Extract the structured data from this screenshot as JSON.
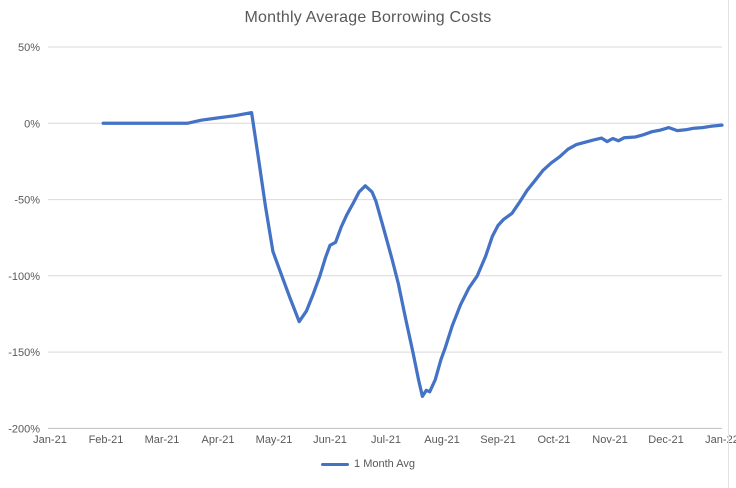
{
  "title": "Monthly Average Borrowing Costs",
  "legend": {
    "series_label": "1 Month Avg"
  },
  "chart_data": {
    "type": "line",
    "title": "Monthly Average Borrowing Costs",
    "xlabel": "",
    "ylabel": "",
    "grid": "horizontal",
    "legend_position": "bottom",
    "xlim": [
      0,
      12
    ],
    "ylim": [
      -200,
      50
    ],
    "x_tick_labels": [
      "Jan-21",
      "Feb-21",
      "Mar-21",
      "Apr-21",
      "May-21",
      "Jun-21",
      "Jul-21",
      "Aug-21",
      "Sep-21",
      "Oct-21",
      "Nov-21",
      "Dec-21",
      "Jan-22"
    ],
    "y_ticks": [
      {
        "value": 50,
        "label": "50%"
      },
      {
        "value": 0,
        "label": "0%"
      },
      {
        "value": -50,
        "label": "-50%"
      },
      {
        "value": -100,
        "label": "-100%"
      },
      {
        "value": -150,
        "label": "-150%"
      },
      {
        "value": -200,
        "label": "-200%"
      }
    ],
    "colors": {
      "line": "#4472C4",
      "gridline": "#D9D9D9",
      "axis_line": "#BFBFBF",
      "text": "#595959"
    },
    "x_units": "months since Jan-2021 tick (0 = Jan-21, 12 = Jan-22)",
    "series": [
      {
        "name": "1 Month Avg",
        "color": "#4472C4",
        "points": [
          [
            0.95,
            0
          ],
          [
            1.3,
            0
          ],
          [
            1.7,
            0
          ],
          [
            2.1,
            0
          ],
          [
            2.45,
            0
          ],
          [
            2.7,
            2
          ],
          [
            3.0,
            3.5
          ],
          [
            3.3,
            5
          ],
          [
            3.6,
            7
          ],
          [
            3.73,
            -25
          ],
          [
            3.85,
            -55
          ],
          [
            3.98,
            -84
          ],
          [
            4.12,
            -98
          ],
          [
            4.28,
            -114
          ],
          [
            4.45,
            -130
          ],
          [
            4.58,
            -123
          ],
          [
            4.7,
            -112
          ],
          [
            4.82,
            -100
          ],
          [
            4.92,
            -88
          ],
          [
            5.0,
            -80
          ],
          [
            5.1,
            -78
          ],
          [
            5.2,
            -68
          ],
          [
            5.3,
            -60
          ],
          [
            5.42,
            -52
          ],
          [
            5.52,
            -45
          ],
          [
            5.63,
            -41
          ],
          [
            5.75,
            -45
          ],
          [
            5.82,
            -51
          ],
          [
            5.95,
            -68
          ],
          [
            6.1,
            -88
          ],
          [
            6.22,
            -105
          ],
          [
            6.35,
            -128
          ],
          [
            6.48,
            -150
          ],
          [
            6.58,
            -168
          ],
          [
            6.65,
            -179
          ],
          [
            6.72,
            -175
          ],
          [
            6.78,
            -176
          ],
          [
            6.88,
            -168
          ],
          [
            6.98,
            -155
          ],
          [
            7.05,
            -148
          ],
          [
            7.18,
            -133
          ],
          [
            7.33,
            -119
          ],
          [
            7.48,
            -108
          ],
          [
            7.63,
            -100
          ],
          [
            7.78,
            -87
          ],
          [
            7.9,
            -74
          ],
          [
            8.0,
            -67
          ],
          [
            8.1,
            -63
          ],
          [
            8.25,
            -59
          ],
          [
            8.38,
            -52
          ],
          [
            8.52,
            -44
          ],
          [
            8.65,
            -38
          ],
          [
            8.8,
            -31
          ],
          [
            8.95,
            -26
          ],
          [
            9.1,
            -22
          ],
          [
            9.25,
            -17
          ],
          [
            9.4,
            -14
          ],
          [
            9.55,
            -12.5
          ],
          [
            9.7,
            -11
          ],
          [
            9.85,
            -9.7
          ],
          [
            9.95,
            -12
          ],
          [
            10.05,
            -10
          ],
          [
            10.15,
            -11.5
          ],
          [
            10.25,
            -9.5
          ],
          [
            10.45,
            -9
          ],
          [
            10.6,
            -7.5
          ],
          [
            10.75,
            -5.5
          ],
          [
            10.9,
            -4.5
          ],
          [
            11.05,
            -2.8
          ],
          [
            11.2,
            -4.8
          ],
          [
            11.35,
            -4.3
          ],
          [
            11.5,
            -3.2
          ],
          [
            11.65,
            -2.8
          ],
          [
            11.8,
            -2
          ],
          [
            12.0,
            -1.2
          ]
        ]
      }
    ]
  }
}
